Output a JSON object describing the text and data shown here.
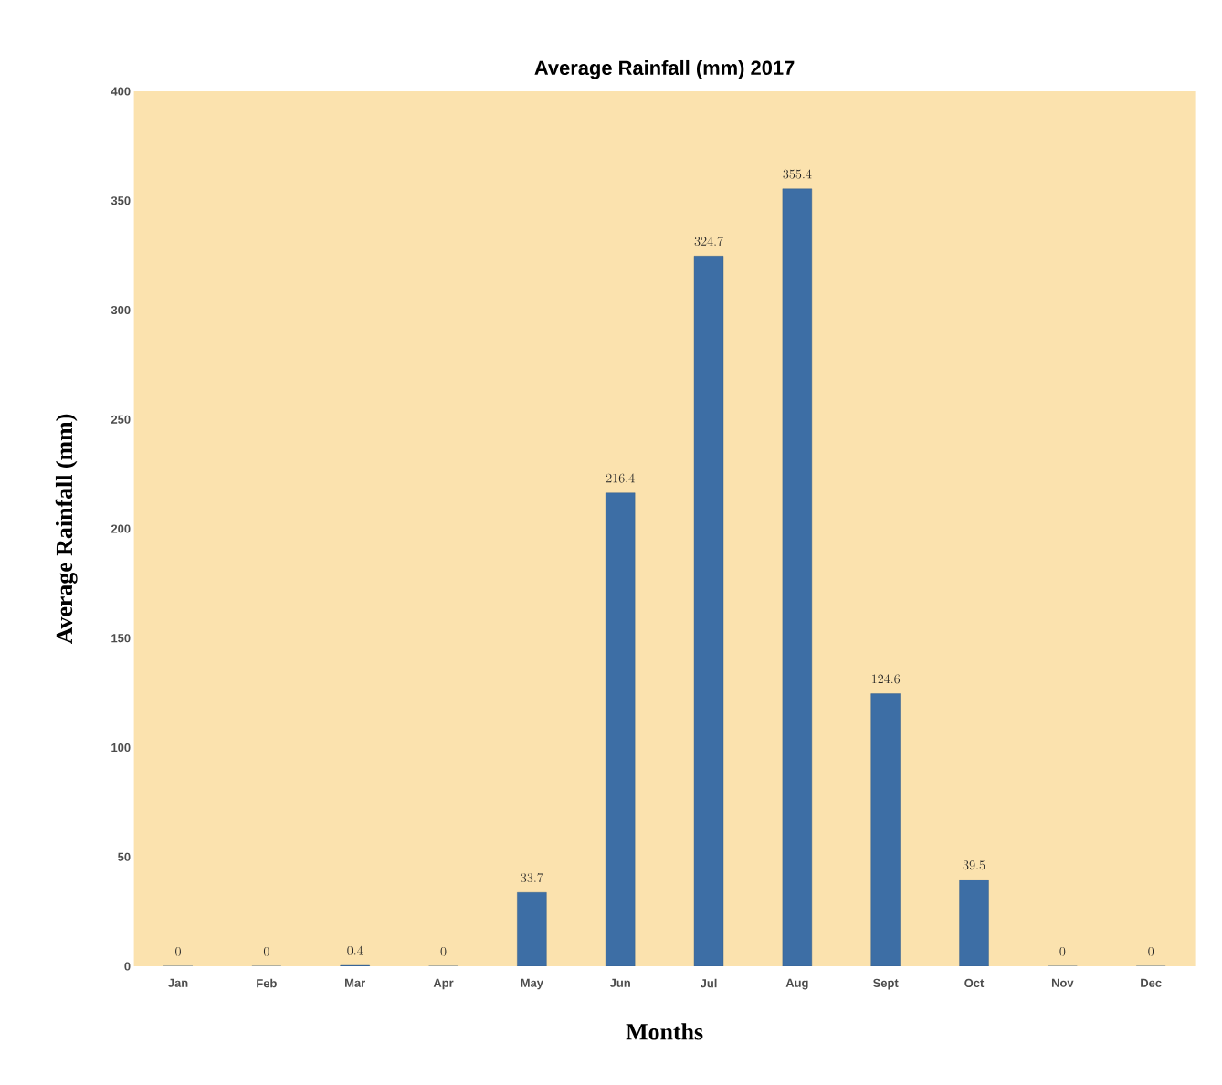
{
  "chart_data": {
    "type": "bar",
    "title": "Average Rainfall (mm) 2017",
    "xlabel": "Months",
    "ylabel": "Average Rainfall  (mm)",
    "categories": [
      "Jan",
      "Feb",
      "Mar",
      "Apr",
      "May",
      "Jun",
      "Jul",
      "Aug",
      "Sept",
      "Oct",
      "Nov",
      "Dec"
    ],
    "values": [
      0,
      0,
      0.4,
      0,
      33.7,
      216.4,
      324.7,
      355.4,
      124.6,
      39.5,
      0,
      0
    ],
    "color": "#3d6ea5",
    "ylim": [
      0,
      400
    ],
    "yticks": [
      0,
      50,
      100,
      150,
      200,
      250,
      300,
      350,
      400
    ],
    "data_labels": true
  }
}
